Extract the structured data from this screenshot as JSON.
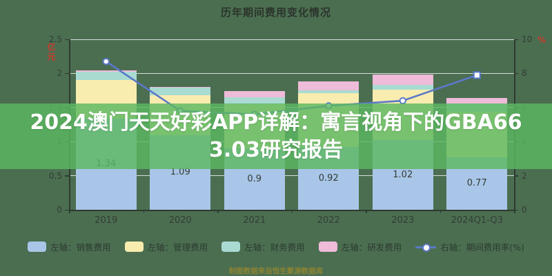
{
  "title": "历年期间费用变化情况",
  "overlay_banner": {
    "text": "2024澳门天天好彩APP详解：寓言视角下的GBA663.03研究报告",
    "line1": "2024澳门天天好彩APP详解：寓言视角下的GBA66",
    "line2": "3.03研究报告"
  },
  "footer_note": "制图数据来自恒生聚源数据库",
  "colors": {
    "background": "#4b6e51",
    "banner": "#5cb762",
    "bar_sales": "#a9c6e8",
    "bar_admin": "#f8ecae",
    "bar_finance": "#a9dbd2",
    "bar_rnd": "#eebbd8",
    "line": "#5b78c9",
    "grid": "#ffffff",
    "axis": "#2e3a30",
    "unit_red": "#cf3b2a",
    "banner_text": "#ffffff",
    "footer_text": "#8b8433"
  },
  "chart_data": {
    "type": "bar",
    "subtype": "stacked-bar-with-line",
    "title": "历年期间费用变化情况",
    "categories": [
      "2019",
      "2020",
      "2021",
      "2022",
      "2023",
      "2024Q1-Q3"
    ],
    "left_axis": {
      "unit": "亿元",
      "min": 0,
      "max": 2.5,
      "ticks": [
        "0",
        "0.5",
        "1",
        "1.5",
        "2",
        "2.5"
      ]
    },
    "right_axis": {
      "unit": "%",
      "min": 0,
      "max": 10,
      "ticks": [
        "0",
        "2",
        "4",
        "6",
        "8",
        "10"
      ]
    },
    "grid": true,
    "legend_position": "bottom",
    "line_end_marker": "square",
    "series": [
      {
        "name": "左轴：销售费用",
        "type": "bar",
        "axis": "left",
        "color": "#a9c6e8",
        "values": [
          1.34,
          1.09,
          0.9,
          0.92,
          1.02,
          0.77
        ],
        "data_labels": [
          "1.34",
          "1.09",
          "0.9",
          "0.92",
          "1.02",
          "0.77"
        ]
      },
      {
        "name": "左轴：管理费用",
        "type": "bar",
        "axis": "left",
        "color": "#f8ecae",
        "values": [
          0.56,
          0.59,
          0.65,
          0.79,
          0.74,
          0.67
        ]
      },
      {
        "name": "左轴：财务费用",
        "type": "bar",
        "axis": "left",
        "color": "#a9dbd2",
        "values": [
          0.12,
          0.11,
          0.1,
          0.04,
          0.07,
          0.12
        ]
      },
      {
        "name": "左轴：研发费用",
        "type": "bar",
        "axis": "left",
        "color": "#eebbd8",
        "values": [
          0.02,
          0.01,
          0.09,
          0.13,
          0.15,
          0.08
        ]
      },
      {
        "name": "右轴：期间费用率(%)",
        "type": "line",
        "axis": "right",
        "color": "#5b78c9",
        "values": [
          8.7,
          5.8,
          5.6,
          6.1,
          6.4,
          7.9
        ]
      }
    ]
  }
}
